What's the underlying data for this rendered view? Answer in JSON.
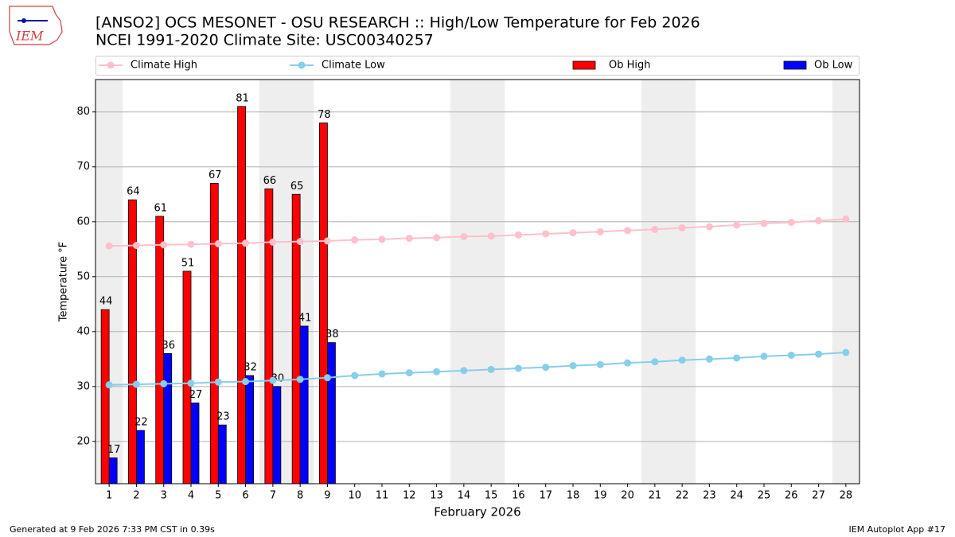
{
  "chart_data": {
    "type": "bar_line",
    "title": "[ANSO2] OCS MESONET - OSU RESEARCH :: High/Low Temperature for Feb 2026",
    "subtitle": "NCEI 1991-2020 Climate Site: USC00340257",
    "x_label": "February 2026",
    "y_label": "Temperature °F",
    "logo_text": "IEM",
    "footer_left": "Generated at 9 Feb 2026 7:33 PM CST in 0.39s",
    "footer_right": "IEM Autoplot App #17",
    "categories": [
      "1",
      "2",
      "3",
      "4",
      "5",
      "6",
      "7",
      "8",
      "9",
      "10",
      "11",
      "12",
      "13",
      "14",
      "15",
      "16",
      "17",
      "18",
      "19",
      "20",
      "21",
      "22",
      "23",
      "24",
      "25",
      "26",
      "27",
      "28"
    ],
    "shaded_categories": [
      "1",
      "7",
      "8",
      "14",
      "15",
      "21",
      "22",
      "28"
    ],
    "series": [
      {
        "name": "Climate High",
        "kind": "line",
        "color": "#ffc0cb",
        "values": [
          55.6,
          55.7,
          55.8,
          55.9,
          56.0,
          56.1,
          56.3,
          56.4,
          56.5,
          56.7,
          56.8,
          57.0,
          57.1,
          57.3,
          57.4,
          57.6,
          57.8,
          58.0,
          58.2,
          58.4,
          58.6,
          58.9,
          59.1,
          59.4,
          59.7,
          59.9,
          60.2,
          60.5
        ]
      },
      {
        "name": "Climate Low",
        "kind": "line",
        "color": "#87ceeb",
        "values": [
          30.3,
          30.4,
          30.5,
          30.6,
          30.8,
          30.9,
          31.1,
          31.3,
          31.6,
          32.0,
          32.3,
          32.5,
          32.7,
          32.9,
          33.1,
          33.3,
          33.5,
          33.8,
          34.0,
          34.3,
          34.5,
          34.8,
          35.0,
          35.2,
          35.5,
          35.7,
          35.9,
          36.2
        ]
      },
      {
        "name": "Ob High",
        "kind": "bar",
        "color": "#ff0000",
        "values": [
          44,
          64,
          61,
          51,
          67,
          81,
          66,
          65,
          78,
          null,
          null,
          null,
          null,
          null,
          null,
          null,
          null,
          null,
          null,
          null,
          null,
          null,
          null,
          null,
          null,
          null,
          null,
          null
        ]
      },
      {
        "name": "Ob Low",
        "kind": "bar",
        "color": "#0000ff",
        "values": [
          17,
          22,
          36,
          27,
          23,
          32,
          30,
          41,
          38,
          null,
          null,
          null,
          null,
          null,
          null,
          null,
          null,
          null,
          null,
          null,
          null,
          null,
          null,
          null,
          null,
          null,
          null,
          null
        ]
      }
    ],
    "ylim": [
      12.3,
      85.9
    ],
    "yticks": [
      20,
      30,
      40,
      50,
      60,
      70,
      80
    ],
    "grid": true,
    "legend": "top"
  }
}
